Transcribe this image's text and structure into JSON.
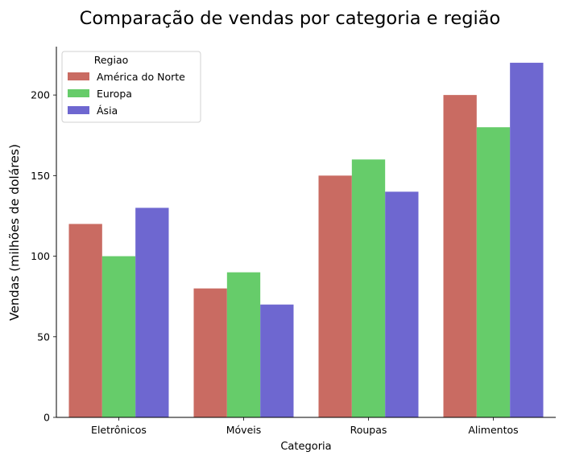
{
  "chart_data": {
    "type": "bar",
    "title": "Comparação de vendas por categoria e região",
    "xlabel": "Categoria",
    "ylabel": "Vendas (milhões de doláres)",
    "categories": [
      "Eletrônicos",
      "Móveis",
      "Roupas",
      "Alimentos"
    ],
    "series": [
      {
        "name": "América do Norte",
        "color": "#c96b62",
        "values": [
          120,
          80,
          150,
          200
        ]
      },
      {
        "name": "Europa",
        "color": "#66cc6a",
        "values": [
          100,
          90,
          160,
          180
        ]
      },
      {
        "name": "Ásia",
        "color": "#6e67d0",
        "values": [
          130,
          70,
          140,
          220
        ]
      }
    ],
    "ylim": [
      0,
      230
    ],
    "yticks": [
      0,
      50,
      100,
      150,
      200
    ],
    "legend": {
      "title": "Regiao",
      "placement": "top-left"
    },
    "grid": false
  }
}
